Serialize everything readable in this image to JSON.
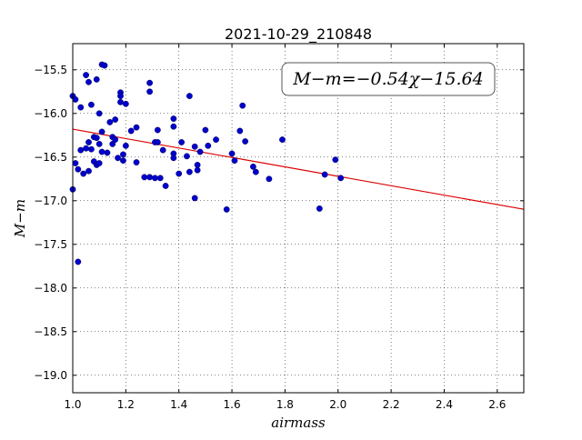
{
  "chart_data": {
    "type": "scatter",
    "title": "2021-10-29_210848",
    "xlabel": "airmass",
    "ylabel": "M−m",
    "xlim": [
      1.0,
      2.7
    ],
    "ylim": [
      -19.2,
      -15.2
    ],
    "x_ticks": [
      "1.0",
      "1.2",
      "1.4",
      "1.6",
      "1.8",
      "2.0",
      "2.2",
      "2.4",
      "2.6"
    ],
    "x_tick_values": [
      1.0,
      1.2,
      1.4,
      1.6,
      1.8,
      2.0,
      2.2,
      2.4,
      2.6
    ],
    "y_ticks": [
      "−15.5",
      "−16.0",
      "−16.5",
      "−17.0",
      "−17.5",
      "−18.0",
      "−18.5",
      "−19.0"
    ],
    "y_tick_values": [
      -15.5,
      -16.0,
      -16.5,
      -17.0,
      -17.5,
      -18.0,
      -18.5,
      -19.0
    ],
    "grid": true,
    "annotation": "M−m=−0.54χ−15.64",
    "fit": {
      "slope": -0.54,
      "intercept": -15.64,
      "color": "#dd0000"
    },
    "marker_color": "#0000cc",
    "points": [
      [
        1.0,
        -15.8
      ],
      [
        1.0,
        -16.87
      ],
      [
        1.01,
        -15.84
      ],
      [
        1.01,
        -16.57
      ],
      [
        1.02,
        -17.7
      ],
      [
        1.02,
        -16.64
      ],
      [
        1.03,
        -15.93
      ],
      [
        1.03,
        -16.42
      ],
      [
        1.04,
        -16.69
      ],
      [
        1.05,
        -15.56
      ],
      [
        1.05,
        -16.4
      ],
      [
        1.06,
        -16.33
      ],
      [
        1.06,
        -15.64
      ],
      [
        1.06,
        -16.66
      ],
      [
        1.07,
        -16.41
      ],
      [
        1.07,
        -15.9
      ],
      [
        1.08,
        -16.27
      ],
      [
        1.08,
        -16.55
      ],
      [
        1.09,
        -15.61
      ],
      [
        1.09,
        -16.28
      ],
      [
        1.09,
        -16.59
      ],
      [
        1.1,
        -16.0
      ],
      [
        1.1,
        -16.35
      ],
      [
        1.1,
        -16.57
      ],
      [
        1.11,
        -15.44
      ],
      [
        1.11,
        -16.21
      ],
      [
        1.11,
        -16.44
      ],
      [
        1.12,
        -15.45
      ],
      [
        1.13,
        -16.45
      ],
      [
        1.14,
        -16.1
      ],
      [
        1.15,
        -16.27
      ],
      [
        1.15,
        -16.35
      ],
      [
        1.16,
        -16.07
      ],
      [
        1.16,
        -16.3
      ],
      [
        1.17,
        -16.51
      ],
      [
        1.18,
        -15.76
      ],
      [
        1.18,
        -15.8
      ],
      [
        1.18,
        -15.87
      ],
      [
        1.19,
        -16.47
      ],
      [
        1.19,
        -16.54
      ],
      [
        1.2,
        -16.37
      ],
      [
        1.2,
        -15.89
      ],
      [
        1.22,
        -16.2
      ],
      [
        1.24,
        -16.56
      ],
      [
        1.24,
        -16.16
      ],
      [
        1.27,
        -16.73
      ],
      [
        1.29,
        -15.75
      ],
      [
        1.29,
        -15.65
      ],
      [
        1.29,
        -16.73
      ],
      [
        1.31,
        -16.33
      ],
      [
        1.31,
        -16.74
      ],
      [
        1.32,
        -16.19
      ],
      [
        1.32,
        -16.33
      ],
      [
        1.33,
        -16.74
      ],
      [
        1.34,
        -16.42
      ],
      [
        1.35,
        -16.83
      ],
      [
        1.38,
        -16.06
      ],
      [
        1.38,
        -16.15
      ],
      [
        1.38,
        -16.46
      ],
      [
        1.38,
        -16.51
      ],
      [
        1.4,
        -16.69
      ],
      [
        1.41,
        -16.33
      ],
      [
        1.43,
        -16.49
      ],
      [
        1.44,
        -16.67
      ],
      [
        1.44,
        -15.8
      ],
      [
        1.46,
        -16.38
      ],
      [
        1.46,
        -16.97
      ],
      [
        1.47,
        -16.59
      ],
      [
        1.47,
        -16.65
      ],
      [
        1.48,
        -16.44
      ],
      [
        1.5,
        -16.19
      ],
      [
        1.51,
        -16.37
      ],
      [
        1.54,
        -16.3
      ],
      [
        1.58,
        -17.1
      ],
      [
        1.6,
        -16.46
      ],
      [
        1.61,
        -16.54
      ],
      [
        1.63,
        -16.2
      ],
      [
        1.64,
        -15.91
      ],
      [
        1.65,
        -16.32
      ],
      [
        1.68,
        -16.61
      ],
      [
        1.69,
        -16.67
      ],
      [
        1.74,
        -16.75
      ],
      [
        1.79,
        -16.3
      ],
      [
        1.93,
        -17.09
      ],
      [
        1.95,
        -16.7
      ],
      [
        1.99,
        -16.53
      ],
      [
        2.01,
        -16.74
      ]
    ]
  }
}
